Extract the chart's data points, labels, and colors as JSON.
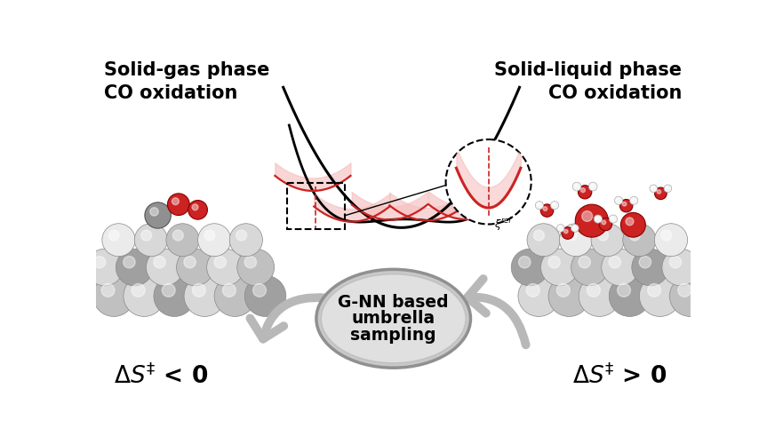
{
  "bg_color": "#ffffff",
  "title_left_line1": "Solid-gas phase",
  "title_left_line2": "CO oxidation",
  "title_right_line1": "Solid-liquid phase",
  "title_right_line2": "CO oxidation",
  "center_text": [
    "G-NN based",
    "umbrella",
    "sampling"
  ],
  "umbrella_color": "#cc2222",
  "fill_color": "#f5c0c0",
  "sphere_light": "#d8d8d8",
  "sphere_mid": "#c0c0c0",
  "sphere_dark": "#a0a0a0",
  "sphere_bright": "#ebebeb",
  "red_atom": "#cc2222",
  "arrow_color": "#b8b8b8",
  "ellipse_outer": "#c8c8c8",
  "ellipse_inner": "#e0e0e0"
}
